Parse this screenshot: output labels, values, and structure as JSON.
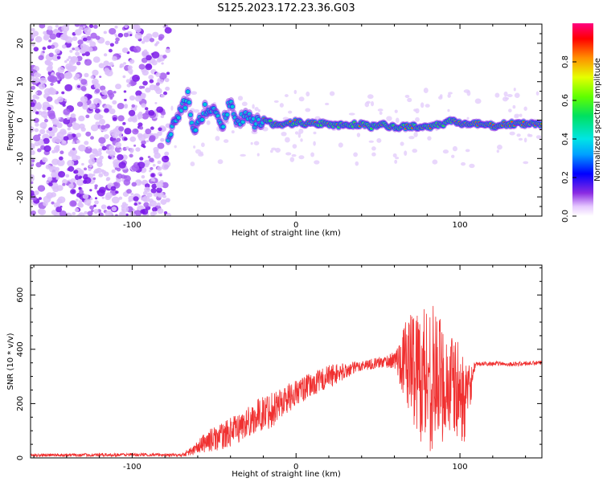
{
  "figure_title": "S125.2023.172.23.36.G03",
  "chart_data": [
    {
      "type": "heatmap",
      "title": "",
      "xlabel": "Height of straight line (km)",
      "ylabel": "Frequency (Hz)",
      "xlim": [
        -162,
        150
      ],
      "ylim": [
        -25,
        25
      ],
      "xticks": [
        -100,
        0,
        100
      ],
      "xtick_labels": [
        "-100",
        "0",
        "100"
      ],
      "yticks": [
        -20,
        -10,
        0,
        10,
        20
      ],
      "ytick_labels": [
        "-20",
        "-10",
        "0",
        "10",
        "20"
      ],
      "colorbar": {
        "label": "Normalized spectral amplitude",
        "range": [
          0,
          1
        ],
        "ticks": [
          0.0,
          0.2,
          0.4,
          0.6,
          0.8
        ],
        "tick_labels": [
          "0.0",
          "0.2",
          "0.4",
          "0.6",
          "0.8"
        ],
        "colormap": "rainbow"
      },
      "features": {
        "noise_region_x": [
          -162,
          -78
        ],
        "signal_start_x": -78,
        "ridge_points": [
          [
            -78,
            -4
          ],
          [
            -72,
            1
          ],
          [
            -66,
            6
          ],
          [
            -62,
            -4
          ],
          [
            -56,
            3
          ],
          [
            -50,
            2
          ],
          [
            -45,
            -2
          ],
          [
            -40,
            5
          ],
          [
            -35,
            -1
          ],
          [
            -30,
            2
          ],
          [
            -25,
            -1
          ],
          [
            -20,
            0
          ],
          [
            -14,
            -1
          ],
          [
            -8,
            -1
          ],
          [
            -4,
            -1
          ],
          [
            0,
            -0.5
          ],
          [
            10,
            -1
          ],
          [
            20,
            -1
          ],
          [
            30,
            -1.5
          ],
          [
            40,
            -1
          ],
          [
            45,
            -2
          ],
          [
            50,
            -1
          ],
          [
            60,
            -2
          ],
          [
            70,
            -1.5
          ],
          [
            80,
            -2
          ],
          [
            90,
            -1
          ],
          [
            95,
            0
          ],
          [
            100,
            -1
          ],
          [
            110,
            -1
          ],
          [
            120,
            -1.5
          ],
          [
            130,
            -1
          ],
          [
            150,
            -1
          ]
        ],
        "grid": false
      }
    },
    {
      "type": "line",
      "title": "",
      "xlabel": "Height of straight line (km)",
      "ylabel": "SNR (10 * v/v)",
      "xlim": [
        -162,
        150
      ],
      "ylim": [
        0,
        710
      ],
      "xticks": [
        -100,
        0,
        100
      ],
      "xtick_labels": [
        "-100",
        "0",
        "100"
      ],
      "yticks": [
        0,
        200,
        400,
        600
      ],
      "ytick_labels": [
        "0",
        "200",
        "400",
        "600"
      ],
      "grid": false,
      "series": [
        {
          "color": "#f03030",
          "envelope_x": [
            -162,
            -90,
            -70,
            -62,
            -55,
            -45,
            -35,
            -25,
            -15,
            -10,
            0,
            10,
            20,
            30,
            40,
            50,
            60,
            65,
            70,
            75,
            80,
            85,
            90,
            95,
            100,
            103,
            110,
            120,
            130,
            150
          ],
          "envelope_mean": [
            10,
            12,
            10,
            30,
            60,
            80,
            110,
            150,
            180,
            200,
            240,
            270,
            300,
            320,
            340,
            350,
            360,
            360,
            350,
            320,
            300,
            300,
            280,
            260,
            240,
            200,
            345,
            348,
            345,
            350
          ],
          "envelope_amp": [
            6,
            6,
            6,
            20,
            40,
            50,
            55,
            60,
            70,
            60,
            50,
            45,
            45,
            30,
            20,
            20,
            30,
            120,
            200,
            250,
            300,
            250,
            220,
            200,
            180,
            140,
            8,
            8,
            8,
            8
          ]
        }
      ]
    }
  ]
}
